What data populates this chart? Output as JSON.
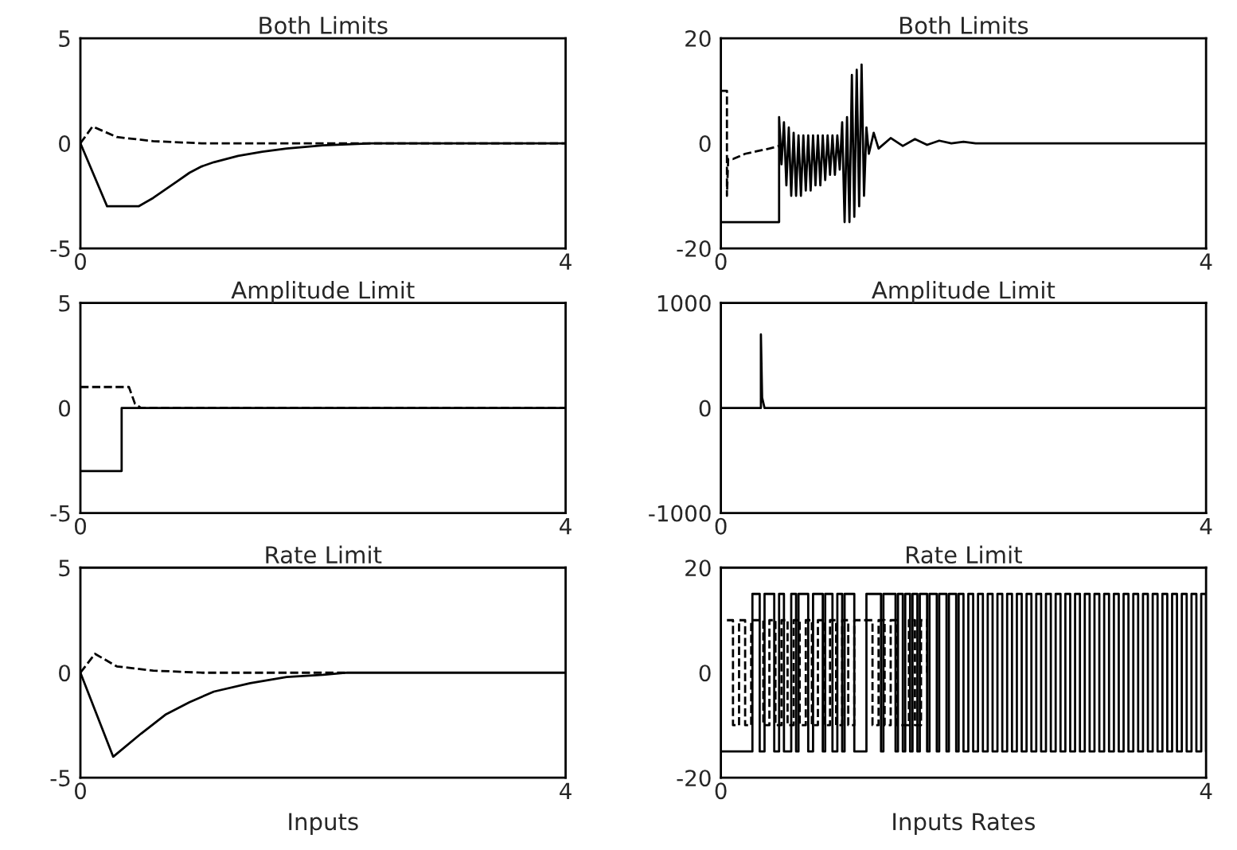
{
  "chart_data": [
    {
      "type": "line",
      "title": "Both Limits",
      "xlim": [
        0,
        4
      ],
      "xticks": [
        0,
        4
      ],
      "ylim": [
        -5,
        5
      ],
      "yticks": [
        -5,
        0,
        5
      ],
      "grid": false,
      "series": [
        {
          "color": "#000000",
          "line_style": "solid",
          "x": [
            0,
            0.22,
            0.48,
            0.6,
            0.7,
            0.8,
            0.9,
            1.0,
            1.1,
            1.3,
            1.5,
            1.7,
            2.0,
            2.4,
            2.8,
            4
          ],
          "values": [
            0,
            -3,
            -3,
            -2.6,
            -2.2,
            -1.8,
            -1.4,
            -1.1,
            -0.9,
            -0.6,
            -0.4,
            -0.25,
            -0.1,
            0,
            0,
            0
          ]
        },
        {
          "color": "#000000",
          "line_style": "dashed",
          "x": [
            0,
            0.1,
            0.3,
            0.6,
            1.0,
            1.5,
            2.0,
            2.8,
            4
          ],
          "values": [
            0,
            0.8,
            0.3,
            0.1,
            0,
            0,
            0,
            0,
            0
          ]
        }
      ]
    },
    {
      "type": "line",
      "title": "Both Limits",
      "xlim": [
        0,
        4
      ],
      "xticks": [
        0,
        4
      ],
      "ylim": [
        -20,
        20
      ],
      "yticks": [
        -20,
        0,
        20
      ],
      "grid": false,
      "series": [
        {
          "color": "#000000",
          "line_style": "solid",
          "x": [
            0,
            0.48,
            0.48,
            0.5,
            0.52,
            0.54,
            0.56,
            0.58,
            0.6,
            0.62,
            0.64,
            0.66,
            0.68,
            0.7,
            0.72,
            0.74,
            0.76,
            0.78,
            0.8,
            0.82,
            0.84,
            0.86,
            0.88,
            0.9,
            0.92,
            0.94,
            0.96,
            0.98,
            1.0,
            1.02,
            1.04,
            1.06,
            1.08,
            1.1,
            1.12,
            1.14,
            1.16,
            1.18,
            1.2,
            1.22,
            1.26,
            1.3,
            1.4,
            1.5,
            1.6,
            1.7,
            1.8,
            1.9,
            2.0,
            2.1,
            3.1,
            4
          ],
          "values": [
            -15,
            -15,
            5,
            -4,
            4,
            -8,
            3,
            -10,
            2,
            -10,
            1.5,
            -10,
            1.5,
            -9,
            1.5,
            -9,
            1.5,
            -8,
            1.5,
            -8,
            1.5,
            -7,
            1.5,
            -6,
            1.5,
            -6,
            1.5,
            -5,
            4,
            -15,
            5,
            -15,
            13,
            -14,
            14,
            -12,
            15,
            -10,
            3,
            -2,
            2,
            -1,
            1,
            -0.5,
            0.8,
            -0.3,
            0.5,
            0,
            0.3,
            0,
            0,
            0
          ]
        },
        {
          "color": "#000000",
          "line_style": "dashed",
          "x": [
            0,
            0.05,
            0.05,
            0.06,
            0.1,
            0.2,
            0.3,
            0.4,
            0.48
          ],
          "values": [
            10,
            10,
            -10,
            -3,
            -3,
            -2,
            -1.5,
            -1,
            -0.5
          ]
        }
      ]
    },
    {
      "type": "line",
      "title": "Amplitude Limit",
      "xlim": [
        0,
        4
      ],
      "xticks": [
        0,
        4
      ],
      "ylim": [
        -5,
        5
      ],
      "yticks": [
        -5,
        0,
        5
      ],
      "grid": false,
      "series": [
        {
          "color": "#000000",
          "line_style": "solid",
          "x": [
            0,
            0.34,
            0.34,
            4
          ],
          "values": [
            -3,
            -3,
            0,
            0
          ]
        },
        {
          "color": "#000000",
          "line_style": "dashed",
          "x": [
            0,
            0.4,
            0.45,
            0.5,
            4
          ],
          "values": [
            1,
            1,
            0.2,
            0,
            0
          ]
        }
      ]
    },
    {
      "type": "line",
      "title": "Amplitude Limit",
      "xlim": [
        0,
        4
      ],
      "xticks": [
        0,
        4
      ],
      "ylim": [
        -1000,
        1000
      ],
      "yticks": [
        -1000,
        0,
        1000
      ],
      "grid": false,
      "series": [
        {
          "color": "#000000",
          "line_style": "solid",
          "x": [
            0,
            0.33,
            0.33,
            0.34,
            0.36,
            0.38,
            4
          ],
          "values": [
            0,
            0,
            700,
            100,
            0,
            0,
            0
          ]
        }
      ]
    },
    {
      "type": "line",
      "title": "Rate Limit",
      "xlabel": "Inputs",
      "xlim": [
        0,
        4
      ],
      "xticks": [
        0,
        4
      ],
      "ylim": [
        -5,
        5
      ],
      "yticks": [
        -5,
        0,
        5
      ],
      "grid": false,
      "series": [
        {
          "color": "#000000",
          "line_style": "solid",
          "x": [
            0,
            0.27,
            0.5,
            0.7,
            0.9,
            1.1,
            1.4,
            1.7,
            2.0,
            2.2,
            4
          ],
          "values": [
            0,
            -4,
            -2.9,
            -2,
            -1.4,
            -0.9,
            -0.5,
            -0.2,
            -0.1,
            0,
            0
          ]
        },
        {
          "color": "#000000",
          "line_style": "dashed",
          "x": [
            0,
            0.12,
            0.3,
            0.6,
            1.0,
            2.2
          ],
          "values": [
            0,
            0.9,
            0.3,
            0.1,
            0,
            0
          ]
        }
      ]
    },
    {
      "type": "step",
      "title": "Rate Limit",
      "xlabel": "Inputs Rates",
      "xlim": [
        0,
        4
      ],
      "xticks": [
        0,
        4
      ],
      "ylim": [
        -20,
        20
      ],
      "yticks": [
        -20,
        0,
        20
      ],
      "grid": false,
      "series": [
        {
          "color": "#000000",
          "line_style": "solid",
          "x": [
            0,
            0.26,
            0.32,
            0.36,
            0.44,
            0.48,
            0.52,
            0.58,
            0.62,
            0.64,
            0.72,
            0.76,
            0.84,
            0.86,
            0.92,
            0.96,
            1.0,
            1.02,
            1.1,
            1.2,
            1.32,
            1.34,
            1.44,
            1.46,
            1.5,
            1.52,
            1.56,
            1.58,
            1.62,
            1.64,
            1.7,
            1.72,
            1.78,
            1.8,
            1.86,
            1.88,
            1.94,
            1.96,
            2.0,
            2.04,
            2.08,
            2.12,
            2.16,
            2.2,
            2.24,
            2.28,
            2.32,
            2.36,
            2.4,
            2.44,
            2.48,
            2.52,
            2.56,
            2.6,
            2.64,
            2.68,
            2.72,
            2.76,
            2.8,
            2.84,
            2.88,
            2.92,
            2.96,
            3.0,
            3.04,
            3.08,
            3.12,
            3.16,
            3.2,
            3.24,
            3.28,
            3.32,
            3.36,
            3.4,
            3.44,
            3.48,
            3.52,
            3.56,
            3.6,
            3.64,
            3.68,
            3.72,
            3.76,
            3.8,
            3.84,
            3.88,
            3.92,
            3.96,
            4.0
          ],
          "values": [
            -15,
            15,
            -15,
            15,
            -15,
            15,
            -15,
            15,
            -15,
            15,
            -15,
            15,
            -15,
            15,
            -15,
            15,
            -15,
            15,
            -15,
            15,
            -15,
            15,
            -15,
            15,
            -15,
            15,
            -15,
            15,
            -15,
            15,
            -15,
            15,
            -15,
            15,
            -15,
            15,
            -15,
            15,
            -15,
            15,
            -15,
            15,
            -15,
            15,
            -15,
            15,
            -15,
            15,
            -15,
            15,
            -15,
            15,
            -15,
            15,
            -15,
            15,
            -15,
            15,
            -15,
            15,
            -15,
            15,
            -15,
            15,
            -15,
            15,
            -15,
            15,
            -15,
            15,
            -15,
            15,
            -15,
            15,
            -15,
            15,
            -15,
            15,
            -15,
            15,
            -15,
            15,
            -15,
            15,
            -15,
            15,
            -15,
            15,
            -15
          ]
        },
        {
          "color": "#000000",
          "line_style": "dashed",
          "x": [
            0.05,
            0.1,
            0.15,
            0.2,
            0.25,
            0.35,
            0.4,
            0.45,
            0.5,
            0.55,
            0.6,
            0.65,
            0.7,
            0.75,
            0.8,
            0.85,
            0.9,
            0.95,
            1.0,
            1.05,
            1.1,
            1.25,
            1.3,
            1.35,
            1.4,
            1.45,
            1.55,
            1.6,
            1.65,
            1.7
          ],
          "values": [
            10,
            -10,
            10,
            -10,
            10,
            -10,
            10,
            -10,
            10,
            -10,
            10,
            -10,
            10,
            -10,
            10,
            -10,
            10,
            -10,
            10,
            -10,
            10,
            -10,
            10,
            -10,
            10,
            -10,
            10,
            -10,
            10,
            0
          ]
        }
      ]
    }
  ]
}
